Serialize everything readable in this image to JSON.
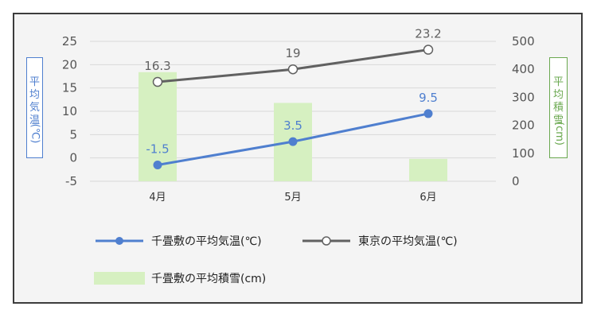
{
  "chart_data": {
    "type": "bar+line",
    "categories": [
      "4月",
      "5月",
      "6月"
    ],
    "series": [
      {
        "name": "千畳敷の平均気温(℃)",
        "type": "line",
        "axis": "left",
        "values": [
          -1.5,
          3.5,
          9.5
        ],
        "labels": [
          "-1.5",
          "3.5",
          "9.5"
        ],
        "color": "#4f7fcf"
      },
      {
        "name": "東京の平均気温(℃)",
        "type": "line",
        "axis": "left",
        "values": [
          16.3,
          19,
          23.2
        ],
        "labels": [
          "16.3",
          "19",
          "23.2"
        ],
        "color": "#616161"
      },
      {
        "name": "千畳敷の平均積雪(cm)",
        "type": "bar",
        "axis": "right",
        "values": [
          390,
          280,
          80
        ],
        "color": "#d6f0c1"
      }
    ],
    "y_left": {
      "label_chars": [
        "平",
        "均",
        "気",
        "温",
        "(℃)"
      ],
      "ticks": [
        "25",
        "20",
        "15",
        "10",
        "5",
        "0",
        "-5"
      ],
      "ylim": [
        -5,
        25
      ]
    },
    "y_right": {
      "label_chars": [
        "平",
        "均",
        "積",
        "雪",
        "(cm)"
      ],
      "ticks": [
        "500",
        "400",
        "300",
        "200",
        "100",
        "0"
      ],
      "ylim": [
        0,
        500
      ]
    },
    "grid": true,
    "legend_position": "bottom"
  }
}
